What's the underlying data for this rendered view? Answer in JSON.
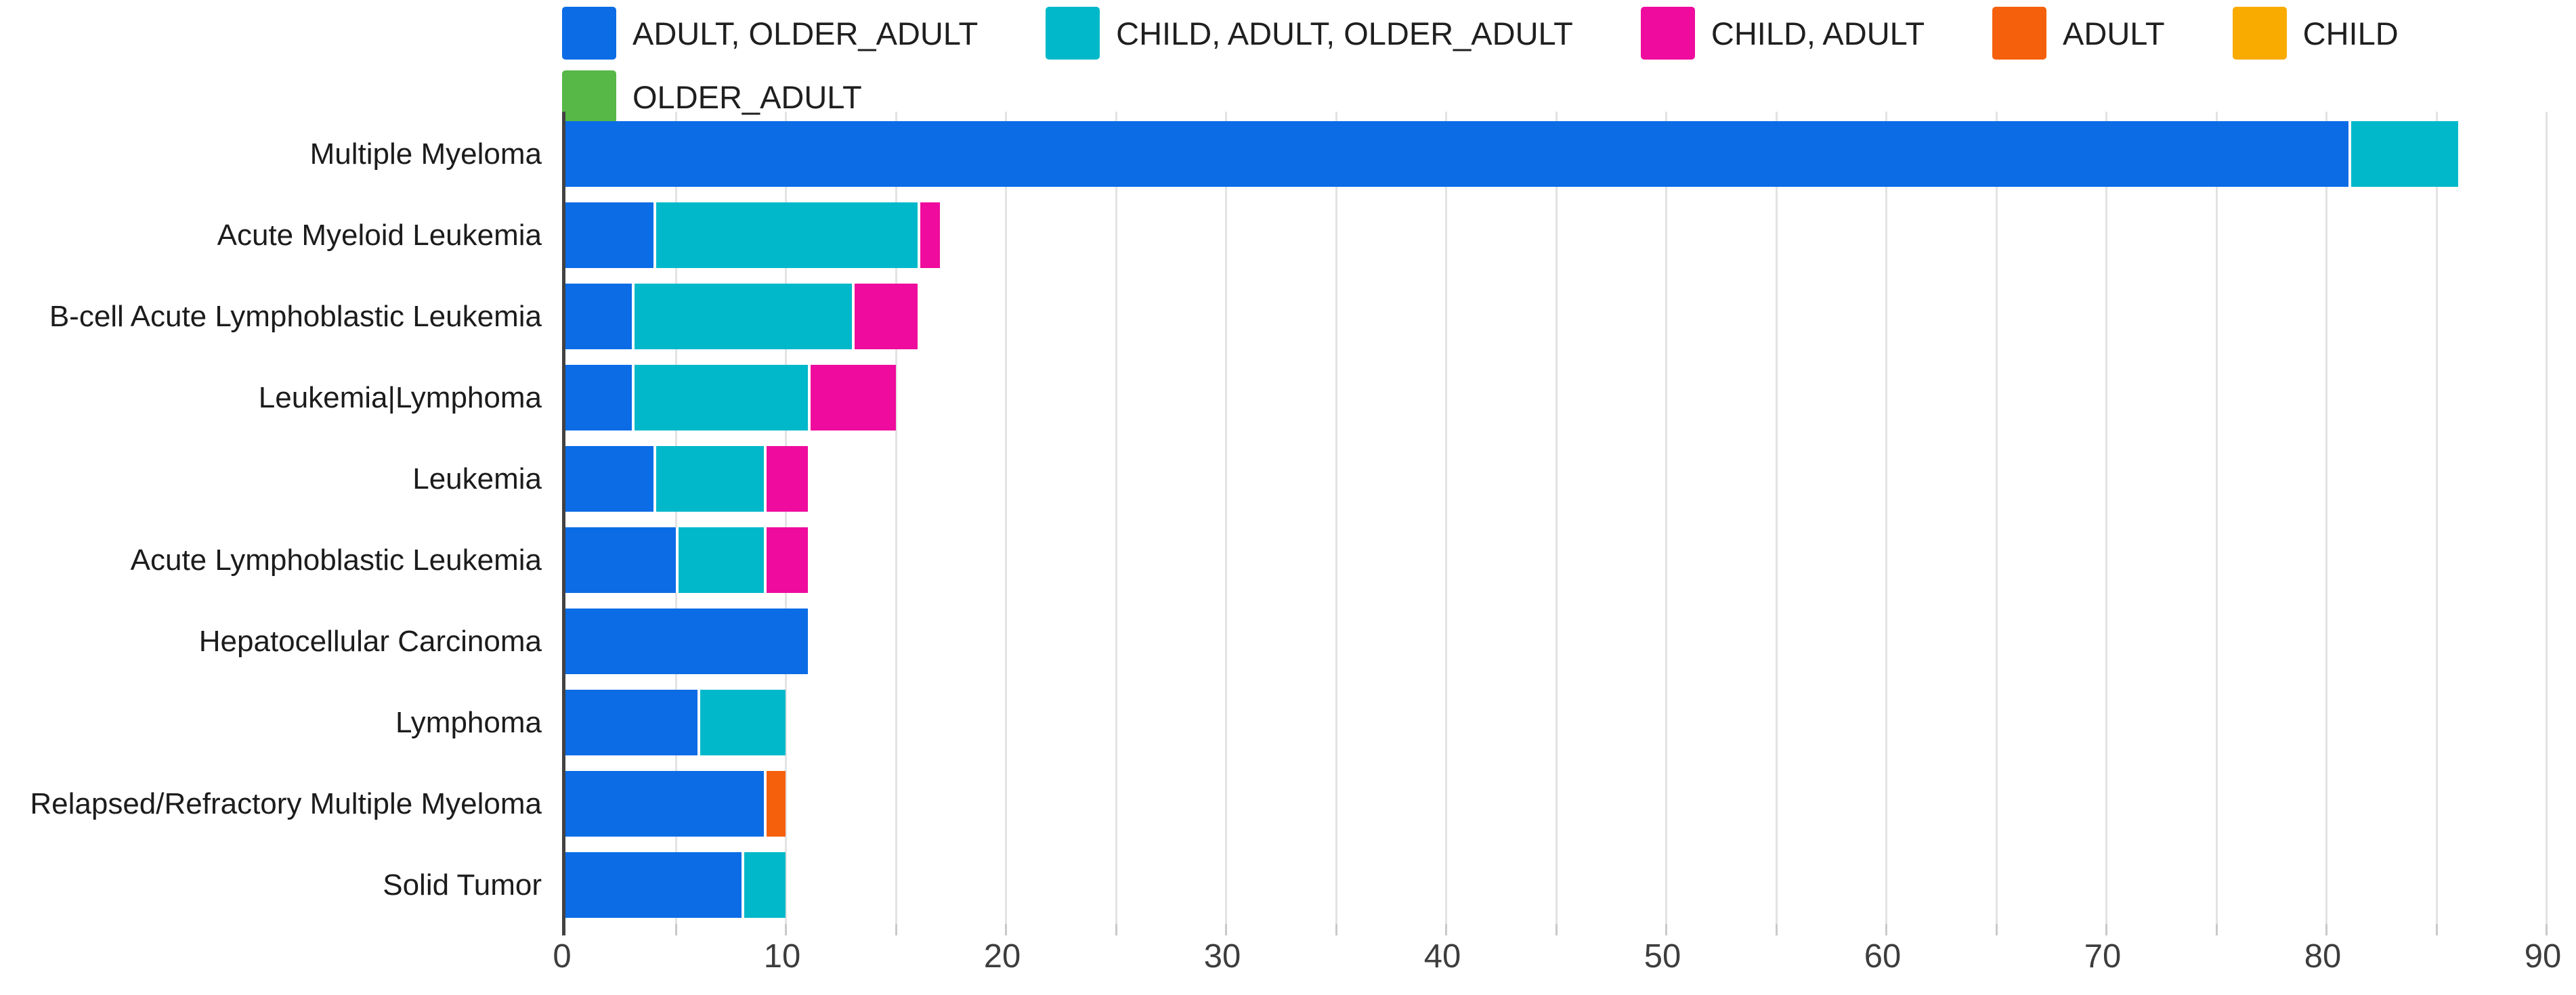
{
  "chart_data": {
    "type": "bar",
    "orientation": "horizontal",
    "title": "",
    "xlabel": "",
    "ylabel": "",
    "xlim": [
      0,
      90
    ],
    "x_tick_labels": [
      "0",
      "10",
      "20",
      "30",
      "40",
      "50",
      "60",
      "70",
      "80",
      "90"
    ],
    "gridline_step": 5,
    "grid": true,
    "legend_position": "top",
    "categories": [
      "Multiple Myeloma",
      "Acute Myeloid Leukemia",
      "B-cell Acute Lymphoblastic Leukemia",
      "Leukemia|Lymphoma",
      "Leukemia",
      "Acute Lymphoblastic Leukemia",
      "Hepatocellular Carcinoma",
      "Lymphoma",
      "Relapsed/Refractory Multiple Myeloma",
      "Solid Tumor"
    ],
    "series": [
      {
        "name": "ADULT, OLDER_ADULT",
        "color": "#0b6ce6",
        "values": [
          81,
          4,
          3,
          3,
          4,
          5,
          11,
          6,
          9,
          8
        ]
      },
      {
        "name": "CHILD, ADULT, OLDER_ADULT",
        "color": "#00b8ca",
        "values": [
          5,
          12,
          10,
          8,
          5,
          4,
          0,
          4,
          0,
          2
        ]
      },
      {
        "name": "CHILD, ADULT",
        "color": "#ef0b9d",
        "values": [
          0,
          1,
          3,
          4,
          2,
          2,
          0,
          0,
          0,
          0
        ]
      },
      {
        "name": "ADULT",
        "color": "#f5600d",
        "values": [
          0,
          0,
          0,
          0,
          0,
          0,
          0,
          0,
          1,
          0
        ]
      },
      {
        "name": "CHILD",
        "color": "#f9ab00",
        "values": [
          0,
          0,
          0,
          0,
          0,
          0,
          0,
          0,
          0,
          0
        ]
      },
      {
        "name": "OLDER_ADULT",
        "color": "#57b747",
        "values": [
          0,
          0,
          0,
          0,
          0,
          0,
          0,
          0,
          0,
          0
        ]
      }
    ],
    "colors": {
      "axis_line": "#424242",
      "gridline": "#e3e3e3",
      "tick_label": "#3d3d3d",
      "category_label": "#1c1c1c"
    }
  }
}
